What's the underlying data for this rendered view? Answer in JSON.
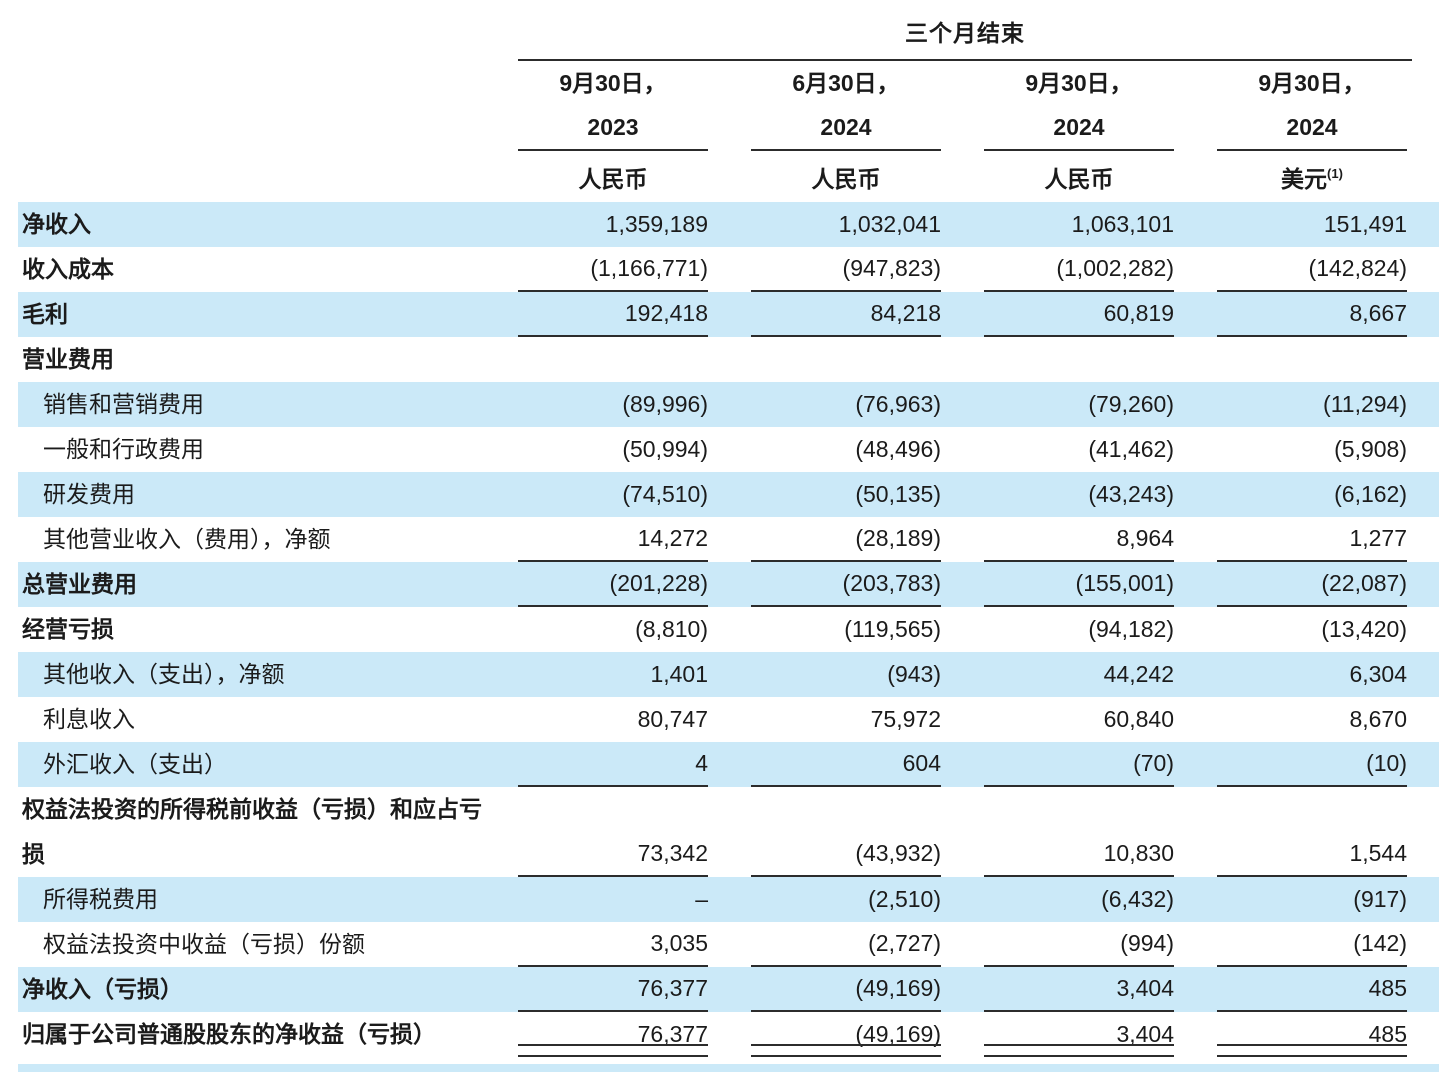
{
  "colors": {
    "row_highlight": "#cbe9f8",
    "rule": "#2c2c2c",
    "text": "#1b1b1b"
  },
  "table": {
    "period_header": "三个月结束",
    "columns": [
      {
        "date_line1": "9月30日，",
        "date_line2": "2023",
        "currency": "人民币",
        "currency_sup": ""
      },
      {
        "date_line1": "6月30日，",
        "date_line2": "2024",
        "currency": "人民币",
        "currency_sup": ""
      },
      {
        "date_line1": "9月30日，",
        "date_line2": "2024",
        "currency": "人民币",
        "currency_sup": ""
      },
      {
        "date_line1": "9月30日，",
        "date_line2": "2024",
        "currency": "美元",
        "currency_sup": "(1)"
      }
    ],
    "rows": [
      {
        "label": "净收入",
        "bold": true,
        "indent": false,
        "bg": "blue",
        "rule": "none",
        "two_line": false,
        "values": [
          "1,359,189",
          "1,032,041",
          "1,063,101",
          "151,491"
        ]
      },
      {
        "label": "收入成本",
        "bold": true,
        "indent": false,
        "bg": "white",
        "rule": "single",
        "two_line": false,
        "values": [
          "(1,166,771)",
          "(947,823)",
          "(1,002,282)",
          "(142,824)"
        ]
      },
      {
        "label": "毛利",
        "bold": true,
        "indent": false,
        "bg": "blue",
        "rule": "single",
        "two_line": false,
        "values": [
          "192,418",
          "84,218",
          "60,819",
          "8,667"
        ]
      },
      {
        "label": "营业费用",
        "bold": true,
        "indent": false,
        "bg": "white",
        "rule": "none",
        "two_line": false,
        "values": [
          "",
          "",
          "",
          ""
        ]
      },
      {
        "label": "销售和营销费用",
        "bold": false,
        "indent": true,
        "bg": "blue",
        "rule": "none",
        "two_line": false,
        "values": [
          "(89,996)",
          "(76,963)",
          "(79,260)",
          "(11,294)"
        ]
      },
      {
        "label": "一般和行政费用",
        "bold": false,
        "indent": true,
        "bg": "white",
        "rule": "none",
        "two_line": false,
        "values": [
          "(50,994)",
          "(48,496)",
          "(41,462)",
          "(5,908)"
        ]
      },
      {
        "label": "研发费用",
        "bold": false,
        "indent": true,
        "bg": "blue",
        "rule": "none",
        "two_line": false,
        "values": [
          "(74,510)",
          "(50,135)",
          "(43,243)",
          "(6,162)"
        ]
      },
      {
        "label": "其他营业收入（费用），净额",
        "bold": false,
        "indent": true,
        "bg": "white",
        "rule": "single",
        "two_line": false,
        "values": [
          "14,272",
          "(28,189)",
          "8,964",
          "1,277"
        ]
      },
      {
        "label": "总营业费用",
        "bold": true,
        "indent": false,
        "bg": "blue",
        "rule": "single",
        "two_line": false,
        "values": [
          "(201,228)",
          "(203,783)",
          "(155,001)",
          "(22,087)"
        ]
      },
      {
        "label": "经营亏损",
        "bold": true,
        "indent": false,
        "bg": "white",
        "rule": "none",
        "two_line": false,
        "values": [
          "(8,810)",
          "(119,565)",
          "(94,182)",
          "(13,420)"
        ]
      },
      {
        "label": "其他收入（支出），净额",
        "bold": false,
        "indent": true,
        "bg": "blue",
        "rule": "none",
        "two_line": false,
        "values": [
          "1,401",
          "(943)",
          "44,242",
          "6,304"
        ]
      },
      {
        "label": "利息收入",
        "bold": false,
        "indent": true,
        "bg": "white",
        "rule": "none",
        "two_line": false,
        "values": [
          "80,747",
          "75,972",
          "60,840",
          "8,670"
        ]
      },
      {
        "label": "外汇收入（支出）",
        "bold": false,
        "indent": true,
        "bg": "blue",
        "rule": "single",
        "two_line": false,
        "values": [
          "4",
          "604",
          "(70)",
          "(10)"
        ]
      },
      {
        "label": "权益法投资的所得税前收益（亏损）和应占亏\n损",
        "bold": true,
        "indent": false,
        "bg": "white",
        "rule": "single",
        "two_line": true,
        "values": [
          "73,342",
          "(43,932)",
          "10,830",
          "1,544"
        ]
      },
      {
        "label": "所得税费用",
        "bold": false,
        "indent": true,
        "bg": "blue",
        "rule": "none",
        "two_line": false,
        "values": [
          "–",
          "(2,510)",
          "(6,432)",
          "(917)"
        ]
      },
      {
        "label": "权益法投资中收益（亏损）份额",
        "bold": false,
        "indent": true,
        "bg": "white",
        "rule": "single",
        "two_line": false,
        "values": [
          "3,035",
          "(2,727)",
          "(994)",
          "(142)"
        ]
      },
      {
        "label": "净收入（亏损）",
        "bold": true,
        "indent": false,
        "bg": "blue",
        "rule": "single",
        "two_line": false,
        "values": [
          "76,377",
          "(49,169)",
          "3,404",
          "485"
        ]
      },
      {
        "label": "归属于公司普通股股东的净收益（亏损）",
        "bold": true,
        "indent": false,
        "bg": "white",
        "rule": "double",
        "two_line": false,
        "values": [
          "76,377",
          "(49,169)",
          "3,404",
          "485"
        ]
      }
    ]
  }
}
